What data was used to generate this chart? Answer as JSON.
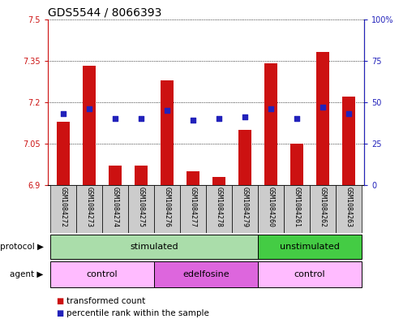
{
  "title": "GDS5544 / 8066393",
  "samples": [
    "GSM1084272",
    "GSM1084273",
    "GSM1084274",
    "GSM1084275",
    "GSM1084276",
    "GSM1084277",
    "GSM1084278",
    "GSM1084279",
    "GSM1084260",
    "GSM1084261",
    "GSM1084262",
    "GSM1084263"
  ],
  "bar_values": [
    7.13,
    7.33,
    6.97,
    6.97,
    7.28,
    6.95,
    6.93,
    7.1,
    7.34,
    7.05,
    7.38,
    7.22
  ],
  "percentile_values": [
    43,
    46,
    40,
    40,
    45,
    39,
    40,
    41,
    46,
    40,
    47,
    43
  ],
  "ylim_left": [
    6.9,
    7.5
  ],
  "ylim_right": [
    0,
    100
  ],
  "yticks_left": [
    6.9,
    7.05,
    7.2,
    7.35,
    7.5
  ],
  "ytick_labels_left": [
    "6.9",
    "7.05",
    "7.2",
    "7.35",
    "7.5"
  ],
  "yticks_right": [
    0,
    25,
    50,
    75,
    100
  ],
  "ytick_labels_right": [
    "0",
    "25",
    "50",
    "75",
    "100%"
  ],
  "bar_color": "#cc1111",
  "dot_color": "#2222bb",
  "protocol_row": [
    {
      "label": "stimulated",
      "start": 0,
      "end": 8,
      "color": "#aaddaa"
    },
    {
      "label": "unstimulated",
      "start": 8,
      "end": 12,
      "color": "#44cc44"
    }
  ],
  "agent_row": [
    {
      "label": "control",
      "start": 0,
      "end": 4,
      "color": "#ffbbff"
    },
    {
      "label": "edelfosine",
      "start": 4,
      "end": 8,
      "color": "#dd66dd"
    },
    {
      "label": "control",
      "start": 8,
      "end": 12,
      "color": "#ffbbff"
    }
  ],
  "legend_items": [
    {
      "label": "transformed count",
      "color": "#cc1111"
    },
    {
      "label": "percentile rank within the sample",
      "color": "#2222bb"
    }
  ],
  "title_fontsize": 10,
  "tick_fontsize": 7,
  "sample_label_fontsize": 6,
  "annot_fontsize": 8,
  "legend_fontsize": 7.5
}
